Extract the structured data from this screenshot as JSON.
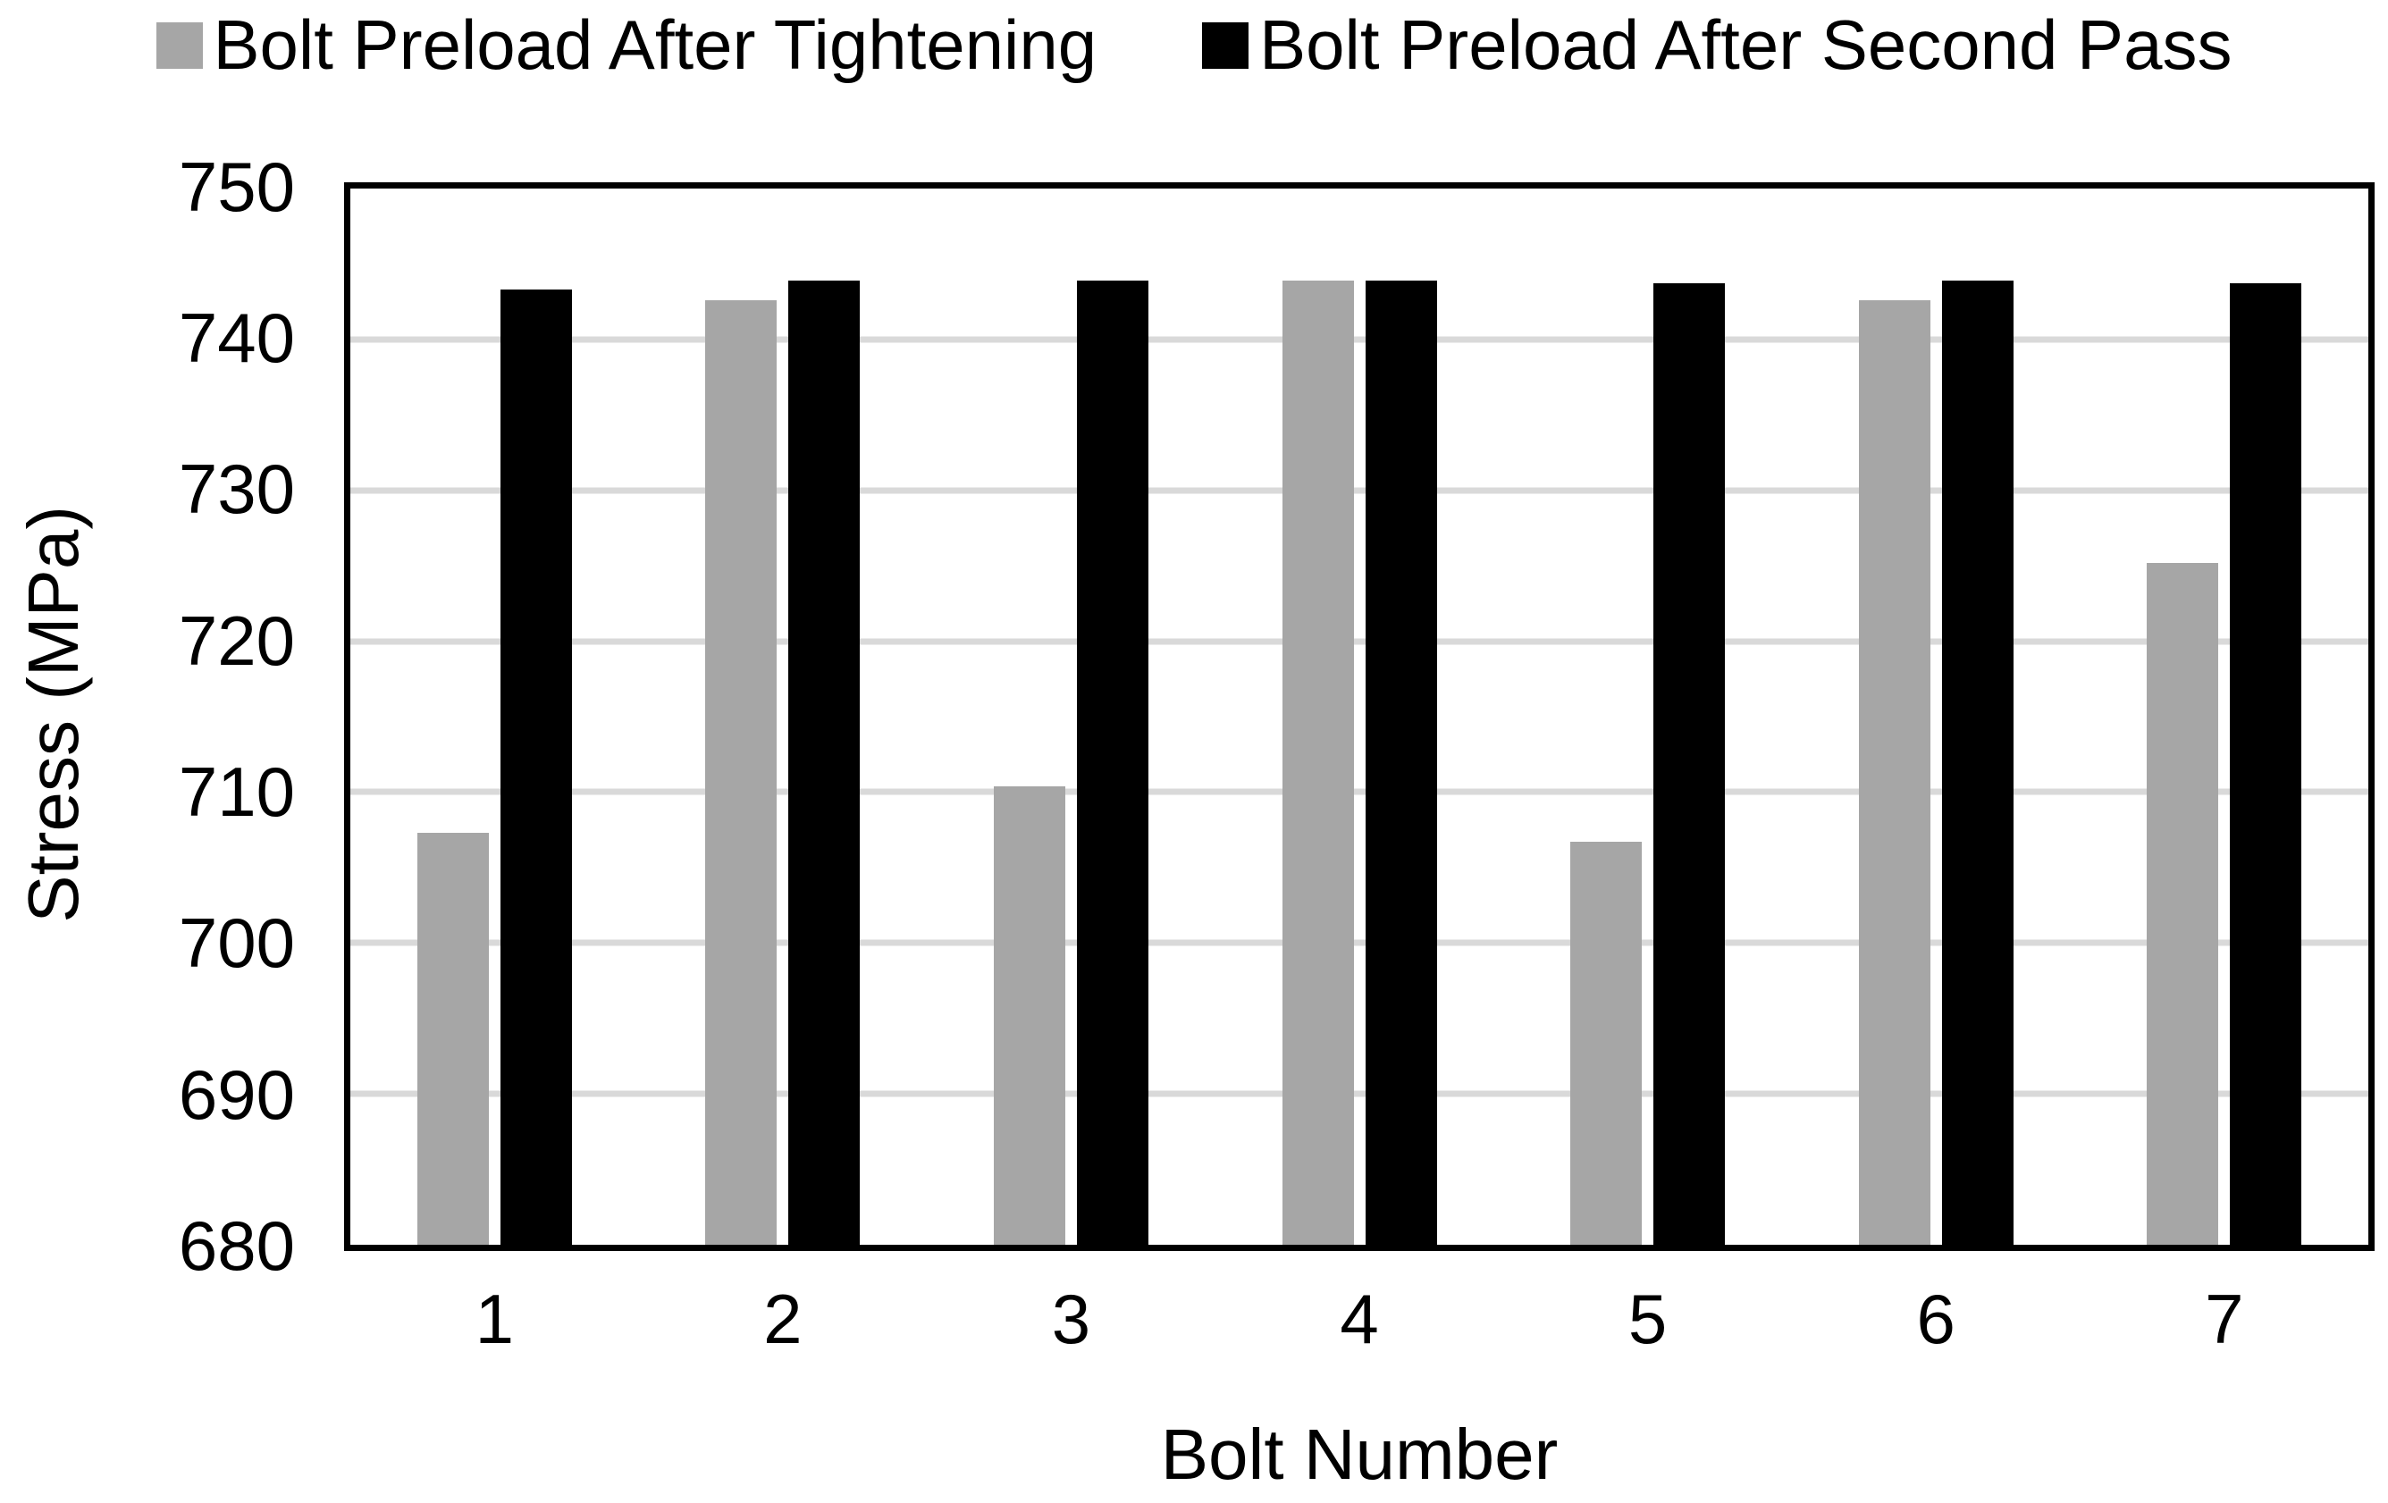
{
  "chart_data": {
    "type": "bar",
    "title": "",
    "categories": [
      "1",
      "2",
      "3",
      "4",
      "5",
      "6",
      "7"
    ],
    "series": [
      {
        "name": "Bolt Preload After Tightening",
        "color": "#A6A6A6",
        "values": [
          707.3,
          742.6,
          710.4,
          743.9,
          706.7,
          742.6,
          725.2
        ]
      },
      {
        "name": "Bolt Preload After Second Pass",
        "color": "#000000",
        "values": [
          743.3,
          743.9,
          743.9,
          743.9,
          743.7,
          743.9,
          743.7
        ]
      }
    ],
    "xlabel": "Bolt Number",
    "ylabel": "Stress (MPa)",
    "ylim": [
      680,
      750
    ],
    "yticks": [
      680,
      690,
      700,
      710,
      720,
      730,
      740,
      750
    ],
    "ytick_step": 10,
    "grid": "horizontal",
    "gridline_color": "#D9D9D9",
    "axis_color": "#000000",
    "background_color": "#FFFFFF",
    "legend_position": "top"
  }
}
